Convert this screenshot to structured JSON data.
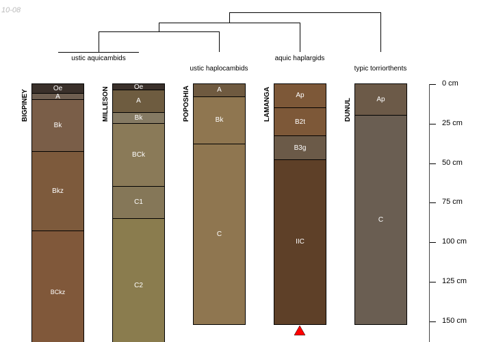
{
  "stamp": "10-08",
  "taxa": [
    {
      "label": "ustic aquicambids"
    },
    {
      "label": "ustic haplocambids"
    },
    {
      "label": "aquic haplargids"
    },
    {
      "label": "typic torriorthents"
    }
  ],
  "profiles": [
    {
      "name": "BIGPINEY",
      "horizons": [
        {
          "name": "Oe",
          "top": 0,
          "bottom": 6,
          "color": "#3a302a"
        },
        {
          "name": "A",
          "top": 6,
          "bottom": 10,
          "color": "#6e5e50"
        },
        {
          "name": "Bk",
          "top": 10,
          "bottom": 43,
          "color": "#7a5e48"
        },
        {
          "name": "Bkz",
          "top": 43,
          "bottom": 93,
          "color": "#7d5a3c"
        },
        {
          "name": "BCkz",
          "top": 93,
          "bottom": 170,
          "color": "#80583a"
        }
      ]
    },
    {
      "name": "MILLESON",
      "horizons": [
        {
          "name": "Oe",
          "top": 0,
          "bottom": 4,
          "color": "#3a302a"
        },
        {
          "name": "A",
          "top": 4,
          "bottom": 18,
          "color": "#6e5c40"
        },
        {
          "name": "Bk",
          "top": 18,
          "bottom": 25,
          "color": "#857a63"
        },
        {
          "name": "BCk",
          "top": 25,
          "bottom": 65,
          "color": "#8a7a58"
        },
        {
          "name": "C1",
          "top": 65,
          "bottom": 85,
          "color": "#857758"
        },
        {
          "name": "C2",
          "top": 85,
          "bottom": 170,
          "color": "#8a7c4e"
        }
      ]
    },
    {
      "name": "POPOSHIA",
      "horizons": [
        {
          "name": "A",
          "top": 0,
          "bottom": 8,
          "color": "#6f5a40"
        },
        {
          "name": "Bk",
          "top": 8,
          "bottom": 38,
          "color": "#8f7650"
        },
        {
          "name": "C",
          "top": 38,
          "bottom": 152,
          "color": "#8f7650"
        }
      ]
    },
    {
      "name": "LAMANGA",
      "horizons": [
        {
          "name": "Ap",
          "top": 0,
          "bottom": 15,
          "color": "#7d5838"
        },
        {
          "name": "B2t",
          "top": 15,
          "bottom": 33,
          "color": "#7d5838"
        },
        {
          "name": "B3g",
          "top": 33,
          "bottom": 48,
          "color": "#6b5a48"
        },
        {
          "name": "IIC",
          "top": 48,
          "bottom": 152,
          "color": "#5e4028"
        }
      ]
    },
    {
      "name": "DUNUL",
      "horizons": [
        {
          "name": "Ap",
          "top": 0,
          "bottom": 20,
          "color": "#6c5a48"
        },
        {
          "name": "C",
          "top": 20,
          "bottom": 152,
          "color": "#6a5e52"
        }
      ]
    }
  ],
  "depth_axis": [
    "0 cm",
    "25 cm",
    "50 cm",
    "75 cm",
    "100 cm",
    "125 cm",
    "150 cm"
  ],
  "marker_color": "#ff0000"
}
